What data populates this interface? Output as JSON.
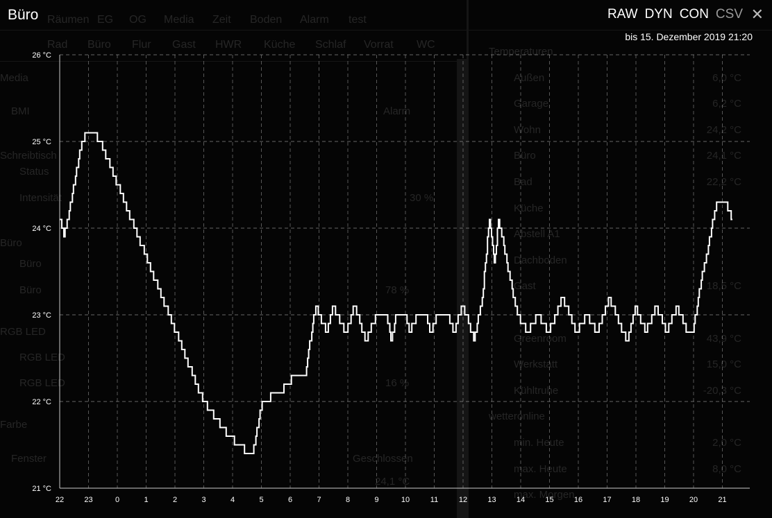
{
  "header": {
    "title": "Büro",
    "modes": [
      "RAW",
      "DYN",
      "CON",
      "CSV"
    ],
    "close_icon": "close-icon",
    "range_label": "bis 15. Dezember 2019 21:20"
  },
  "background": {
    "top_tabs": [
      "Räumen",
      "EG",
      "OG",
      "Media",
      "Zeit",
      "Boden",
      "Alarm",
      "test"
    ],
    "room_tabs": [
      "Rad",
      "Büro",
      "Flur",
      "Gast",
      "HWR",
      "Küche",
      "Schlaf",
      "Vorrat",
      "WC"
    ],
    "left_items": [
      "Media",
      "BMI",
      "Alarm",
      "Schreibtisch",
      "Status",
      "Intensität",
      "30 %",
      "Büro",
      "Büro",
      "Büro",
      "78 %",
      "RGB LED",
      "RGB LED",
      "RGB LED",
      "16 %",
      "Farbe",
      "Fenster",
      "Geschlossen",
      "24,1 °C"
    ],
    "right_items": [
      {
        "label": "Temperaturen",
        "value": ""
      },
      {
        "label": "Außen",
        "value": "6,0 °C"
      },
      {
        "label": "Garage",
        "value": "6,2 °C"
      },
      {
        "label": "Wohn",
        "value": "24,2 °C"
      },
      {
        "label": "Büro",
        "value": "24,1 °C"
      },
      {
        "label": "Bad",
        "value": "22,2 °C"
      },
      {
        "label": "Küche",
        "value": ""
      },
      {
        "label": "Abstell A1",
        "value": ""
      },
      {
        "label": "Dachboden",
        "value": ""
      },
      {
        "label": "Gast",
        "value": "18,5 °C"
      },
      {
        "label": "",
        "value": ""
      },
      {
        "label": "Greenroom",
        "value": "43,9 °C"
      },
      {
        "label": "Werkstatt",
        "value": "15,0 °C"
      },
      {
        "label": "Kühltruhe",
        "value": "-20,3 °C"
      },
      {
        "label": "wetteronline",
        "value": ""
      },
      {
        "label": "min. Heute",
        "value": "2,0 °C"
      },
      {
        "label": "max. Heute",
        "value": "8,0 °C"
      },
      {
        "label": "max. Morgen",
        "value": ""
      }
    ]
  },
  "chart_data": {
    "type": "line",
    "step": true,
    "color": "#ffffff",
    "grid": true,
    "ylim": [
      21,
      26
    ],
    "y_ticks": [
      "21 °C",
      "22 °C",
      "23 °C",
      "24 °C",
      "25 °C",
      "26 °C"
    ],
    "x_ticks": [
      "22",
      "23",
      "0",
      "1",
      "2",
      "3",
      "4",
      "5",
      "6",
      "7",
      "8",
      "9",
      "10",
      "11",
      "12",
      "13",
      "14",
      "15",
      "16",
      "17",
      "18",
      "19",
      "20",
      "21"
    ],
    "points": [
      [
        "22:00",
        24.1
      ],
      [
        "22:09",
        23.9
      ],
      [
        "22:20",
        24.2
      ],
      [
        "22:46",
        25.0
      ],
      [
        "22:59",
        25.1
      ],
      [
        "23:12",
        25.1
      ],
      [
        "23:25",
        25.0
      ],
      [
        "02:59",
        22.0
      ],
      [
        "03:53",
        21.6
      ],
      [
        "04:14",
        21.5
      ],
      [
        "04:32",
        21.4
      ],
      [
        "04:42",
        21.4
      ],
      [
        "05:02",
        22.0
      ],
      [
        "05:34",
        22.1
      ],
      [
        "05:56",
        22.2
      ],
      [
        "06:05",
        22.3
      ],
      [
        "06:32",
        22.3
      ],
      [
        "06:49",
        23.0
      ],
      [
        "06:54",
        23.1
      ],
      [
        "07:15",
        22.8
      ],
      [
        "07:30",
        23.1
      ],
      [
        "07:56",
        22.8
      ],
      [
        "08:14",
        23.1
      ],
      [
        "08:38",
        22.7
      ],
      [
        "08:59",
        23.0
      ],
      [
        "09:21",
        23.0
      ],
      [
        "09:31",
        22.7
      ],
      [
        "09:40",
        23.0
      ],
      [
        "09:59",
        23.0
      ],
      [
        "10:09",
        22.8
      ],
      [
        "10:26",
        23.0
      ],
      [
        "10:42",
        23.0
      ],
      [
        "10:53",
        22.8
      ],
      [
        "11:07",
        23.0
      ],
      [
        "11:28",
        23.0
      ],
      [
        "11:41",
        22.8
      ],
      [
        "11:57",
        23.1
      ],
      [
        "12:07",
        23.0
      ],
      [
        "12:23",
        22.7
      ],
      [
        "12:40",
        23.2
      ],
      [
        "12:55",
        24.1
      ],
      [
        "13:05",
        23.6
      ],
      [
        "13:14",
        24.1
      ],
      [
        "13:53",
        23.0
      ],
      [
        "14:14",
        22.8
      ],
      [
        "14:36",
        23.0
      ],
      [
        "14:58",
        22.8
      ],
      [
        "15:27",
        23.2
      ],
      [
        "15:56",
        22.8
      ],
      [
        "16:17",
        23.0
      ],
      [
        "16:39",
        22.8
      ],
      [
        "17:04",
        23.2
      ],
      [
        "17:41",
        22.7
      ],
      [
        "17:59",
        23.1
      ],
      [
        "18:20",
        22.8
      ],
      [
        "18:42",
        23.1
      ],
      [
        "19:04",
        22.8
      ],
      [
        "19:25",
        23.1
      ],
      [
        "19:47",
        22.8
      ],
      [
        "19:59",
        22.8
      ],
      [
        "20:16",
        23.4
      ],
      [
        "20:31",
        23.8
      ],
      [
        "20:48",
        24.3
      ],
      [
        "21:07",
        24.3
      ],
      [
        "21:14",
        24.2
      ],
      [
        "21:21",
        24.1
      ]
    ]
  }
}
